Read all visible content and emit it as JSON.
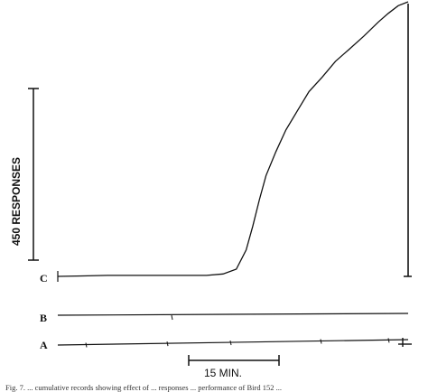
{
  "chart_data": {
    "type": "line",
    "ylabel": "450 RESPONSES",
    "time_scale_label": "15 MIN.",
    "record_labels": [
      "C",
      "B",
      "A"
    ],
    "series": [
      {
        "name": "C",
        "x": [
          0,
          15,
          30,
          45,
          60,
          75,
          90,
          100,
          108,
          114,
          118,
          122,
          126,
          132,
          138,
          145,
          152,
          160,
          168,
          176,
          185,
          194,
          200,
          206,
          212
        ],
        "y": [
          0,
          1,
          2,
          2,
          2,
          2,
          2,
          5,
          15,
          55,
          105,
          160,
          210,
          260,
          305,
          345,
          385,
          415,
          448,
          472,
          500,
          530,
          548,
          564,
          572
        ]
      },
      {
        "name": "B",
        "x": [
          0,
          212
        ],
        "y": [
          0,
          0
        ]
      },
      {
        "name": "A",
        "x": [
          0,
          212
        ],
        "y": [
          0,
          0
        ]
      }
    ],
    "caption": "Fig. 7. ... cumulative records showing effect of ... responses ... performance of Bird 152 ..."
  }
}
